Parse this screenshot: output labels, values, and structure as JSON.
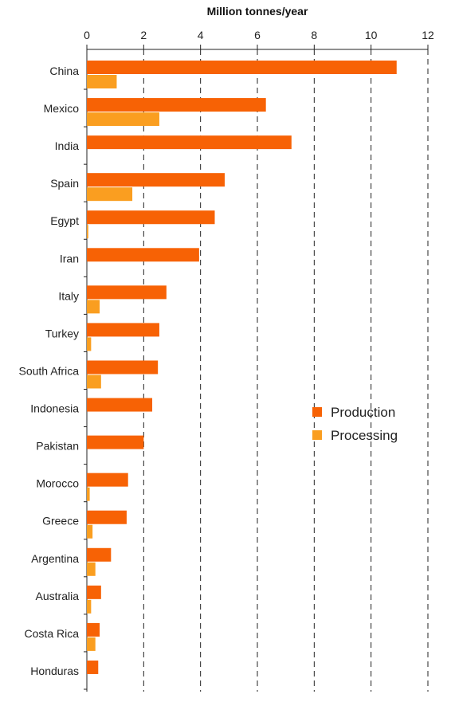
{
  "chart_data": {
    "type": "bar",
    "orientation": "horizontal",
    "title": "",
    "xlabel": "Million tonnes/year",
    "ylabel": "",
    "xlim": [
      0,
      12
    ],
    "xticks": [
      0,
      2,
      4,
      6,
      8,
      10,
      12
    ],
    "xaxis_position": "top",
    "grid": "vertical dashed",
    "legend_position": "center-right",
    "categories": [
      "China",
      "Mexico",
      "India",
      "Spain",
      "Egypt",
      "Iran",
      "Italy",
      "Turkey",
      "South Africa",
      "Indonesia",
      "Pakistan",
      "Morocco",
      "Greece",
      "Argentina",
      "Australia",
      "Costa Rica",
      "Honduras"
    ],
    "series": [
      {
        "name": "Production",
        "color": "#f76205",
        "values": [
          10.9,
          6.3,
          7.2,
          4.85,
          4.5,
          3.95,
          2.8,
          2.55,
          2.5,
          2.3,
          2.0,
          1.45,
          1.4,
          0.85,
          0.5,
          0.45,
          0.4
        ]
      },
      {
        "name": "Processing",
        "color": "#fa9e20",
        "values": [
          1.05,
          2.55,
          null,
          1.6,
          0.05,
          null,
          0.45,
          0.15,
          0.5,
          null,
          null,
          0.1,
          0.2,
          0.3,
          0.15,
          0.3,
          null
        ]
      }
    ]
  }
}
